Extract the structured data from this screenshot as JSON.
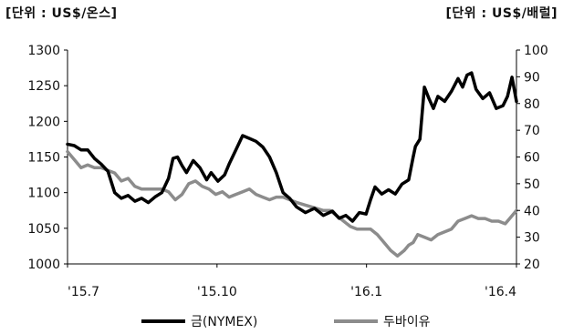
{
  "chart_data": {
    "type": "line",
    "left_axis_unit": "[단위 : US$/온스]",
    "right_axis_unit": "[단위 : US$/배럴]",
    "y_left": {
      "min": 1000,
      "max": 1300,
      "ticks": [
        "1000",
        "1050",
        "1100",
        "1150",
        "1200",
        "1250",
        "1300"
      ]
    },
    "y_right": {
      "min": 20,
      "max": 100,
      "ticks": [
        "20",
        "30",
        "40",
        "50",
        "60",
        "70",
        "80",
        "90",
        "100"
      ]
    },
    "x_labels": [
      "'15.7",
      "'15.10",
      "'16.1",
      "'16.4"
    ],
    "x_range": [
      0,
      100
    ],
    "x_label_positions": [
      0,
      33.3,
      66.6,
      100
    ],
    "grid": false,
    "legend_position": "bottom",
    "series": [
      {
        "name": "금(NYMEX)",
        "axis": "left",
        "color": "#000000",
        "points": [
          [
            0,
            1168
          ],
          [
            1.5,
            1166
          ],
          [
            3,
            1160
          ],
          [
            4.5,
            1160
          ],
          [
            6,
            1148
          ],
          [
            7.5,
            1140
          ],
          [
            9,
            1130
          ],
          [
            10.5,
            1100
          ],
          [
            12,
            1092
          ],
          [
            13.5,
            1096
          ],
          [
            15,
            1088
          ],
          [
            16.5,
            1092
          ],
          [
            18,
            1086
          ],
          [
            19.5,
            1094
          ],
          [
            21,
            1100
          ],
          [
            22.5,
            1120
          ],
          [
            23.5,
            1148
          ],
          [
            24.5,
            1150
          ],
          [
            25.5,
            1138
          ],
          [
            26.5,
            1128
          ],
          [
            28,
            1145
          ],
          [
            29.5,
            1135
          ],
          [
            31,
            1118
          ],
          [
            32,
            1128
          ],
          [
            33.5,
            1116
          ],
          [
            35,
            1125
          ],
          [
            36,
            1140
          ],
          [
            37.5,
            1160
          ],
          [
            39,
            1180
          ],
          [
            40.5,
            1176
          ],
          [
            42,
            1172
          ],
          [
            43.5,
            1164
          ],
          [
            45,
            1150
          ],
          [
            46.5,
            1128
          ],
          [
            48,
            1100
          ],
          [
            49.5,
            1092
          ],
          [
            51,
            1080
          ],
          [
            53,
            1072
          ],
          [
            55,
            1078
          ],
          [
            57,
            1068
          ],
          [
            59,
            1074
          ],
          [
            60.5,
            1064
          ],
          [
            62,
            1068
          ],
          [
            63.5,
            1060
          ],
          [
            65,
            1072
          ],
          [
            66.5,
            1070
          ],
          [
            67.5,
            1090
          ],
          [
            68.5,
            1108
          ],
          [
            70,
            1098
          ],
          [
            71.5,
            1104
          ],
          [
            73,
            1098
          ],
          [
            74.5,
            1112
          ],
          [
            76,
            1118
          ],
          [
            77,
            1150
          ],
          [
            77.5,
            1165
          ],
          [
            78.5,
            1175
          ],
          [
            79.5,
            1248
          ],
          [
            80.5,
            1232
          ],
          [
            81.5,
            1218
          ],
          [
            82.5,
            1235
          ],
          [
            84,
            1228
          ],
          [
            85.5,
            1242
          ],
          [
            87,
            1260
          ],
          [
            88,
            1248
          ],
          [
            89,
            1265
          ],
          [
            90,
            1268
          ],
          [
            91,
            1245
          ],
          [
            92.5,
            1232
          ],
          [
            94,
            1240
          ],
          [
            95.5,
            1218
          ],
          [
            97,
            1222
          ],
          [
            98,
            1235
          ],
          [
            99,
            1262
          ],
          [
            100,
            1228
          ]
        ]
      },
      {
        "name": "두바이유",
        "axis": "right",
        "color": "#8c8c8c",
        "points": [
          [
            0,
            62
          ],
          [
            1.5,
            59
          ],
          [
            3,
            56
          ],
          [
            4.5,
            57
          ],
          [
            6,
            56
          ],
          [
            7.5,
            56
          ],
          [
            9,
            55
          ],
          [
            10.5,
            54
          ],
          [
            12,
            51
          ],
          [
            13.5,
            52
          ],
          [
            15,
            49
          ],
          [
            16.5,
            48
          ],
          [
            18,
            48
          ],
          [
            19.5,
            48
          ],
          [
            21,
            48
          ],
          [
            22.5,
            47
          ],
          [
            24,
            44
          ],
          [
            25.5,
            46
          ],
          [
            27,
            50
          ],
          [
            28.5,
            51
          ],
          [
            30,
            49
          ],
          [
            31.5,
            48
          ],
          [
            33,
            46
          ],
          [
            34.5,
            47
          ],
          [
            36,
            45
          ],
          [
            37.5,
            46
          ],
          [
            39,
            47
          ],
          [
            40.5,
            48
          ],
          [
            42,
            46
          ],
          [
            43.5,
            45
          ],
          [
            45,
            44
          ],
          [
            46.5,
            45
          ],
          [
            48,
            45
          ],
          [
            49.5,
            44
          ],
          [
            51,
            43
          ],
          [
            53,
            42
          ],
          [
            55,
            41
          ],
          [
            57,
            40
          ],
          [
            58.5,
            40
          ],
          [
            60,
            38
          ],
          [
            61.5,
            36
          ],
          [
            63,
            34
          ],
          [
            64.5,
            33
          ],
          [
            66,
            33
          ],
          [
            67.5,
            33
          ],
          [
            69,
            31
          ],
          [
            70.5,
            28
          ],
          [
            72,
            25
          ],
          [
            73.5,
            23
          ],
          [
            75,
            25
          ],
          [
            76,
            27
          ],
          [
            77,
            28
          ],
          [
            78,
            31
          ],
          [
            79.5,
            30
          ],
          [
            81,
            29
          ],
          [
            82.5,
            31
          ],
          [
            84,
            32
          ],
          [
            85.5,
            33
          ],
          [
            87,
            36
          ],
          [
            88.5,
            37
          ],
          [
            90,
            38
          ],
          [
            91.5,
            37
          ],
          [
            93,
            37
          ],
          [
            94.5,
            36
          ],
          [
            96,
            36
          ],
          [
            97.5,
            35
          ],
          [
            99,
            38
          ],
          [
            100,
            40
          ]
        ]
      }
    ]
  }
}
